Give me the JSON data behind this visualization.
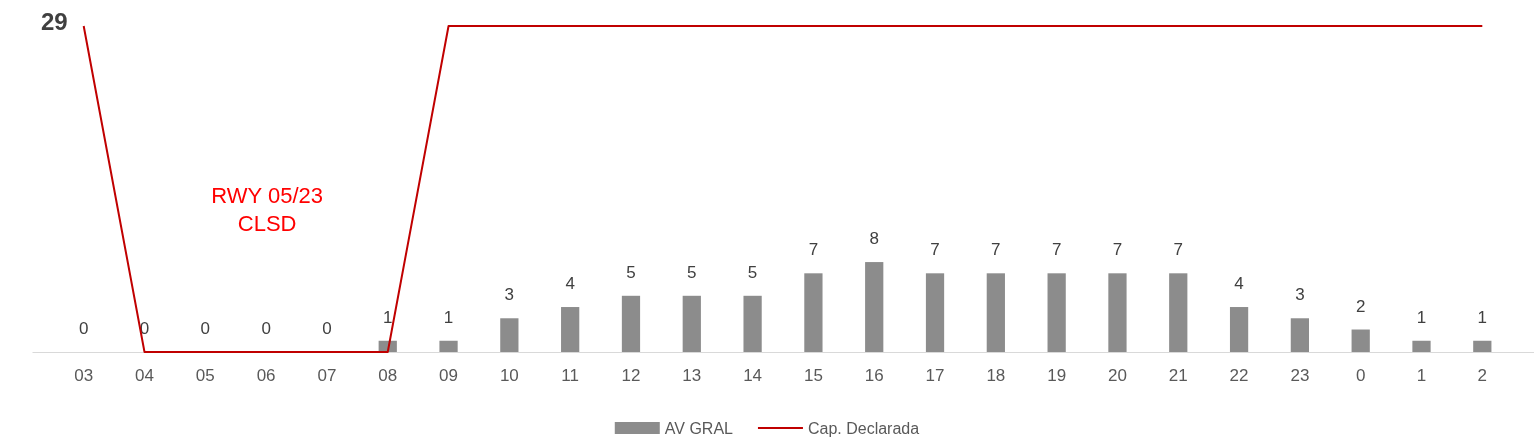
{
  "chart_data": {
    "type": "bar",
    "categories": [
      "03",
      "04",
      "05",
      "06",
      "07",
      "08",
      "09",
      "10",
      "11",
      "12",
      "13",
      "14",
      "15",
      "16",
      "17",
      "18",
      "19",
      "20",
      "21",
      "22",
      "23",
      "0",
      "1",
      "2"
    ],
    "series": [
      {
        "name": "AV GRAL",
        "color": "#8c8c8c",
        "values": [
          0,
          0,
          0,
          0,
          0,
          1,
          1,
          3,
          4,
          5,
          5,
          5,
          7,
          8,
          7,
          7,
          7,
          7,
          7,
          4,
          3,
          2,
          1,
          1
        ],
        "value_labels": [
          "0",
          "0",
          "0",
          "0",
          "0",
          "1",
          "1",
          "3",
          "4",
          "5",
          "5",
          "5",
          "7",
          "8",
          "7",
          "7",
          "7",
          "7",
          "7",
          "4",
          "3",
          "2",
          "1",
          "1"
        ]
      },
      {
        "name": "Cap. Declarada",
        "type": "line",
        "color": "#c00000",
        "values": [
          29,
          0,
          0,
          0,
          0,
          0,
          29,
          29,
          29,
          29,
          29,
          29,
          29,
          29,
          29,
          29,
          29,
          29,
          29,
          29,
          29,
          29,
          29,
          29
        ],
        "value_labels": [
          "29",
          null,
          null,
          null,
          null,
          null,
          null,
          null,
          null,
          null,
          null,
          null,
          null,
          null,
          null,
          null,
          null,
          null,
          null,
          null,
          null,
          null,
          null,
          null
        ]
      }
    ],
    "annotations": [
      "RWY 05/23\nCLSD"
    ],
    "legend": "bottom",
    "grid": false,
    "marker": "none",
    "line_style": "solid"
  }
}
